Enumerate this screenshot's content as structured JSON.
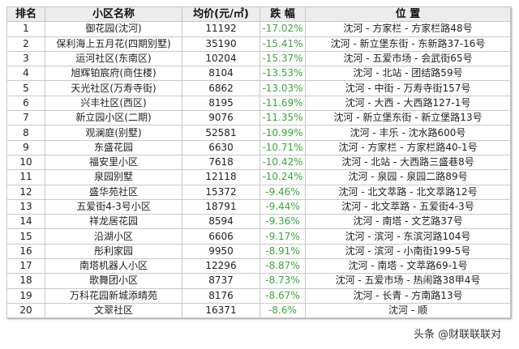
{
  "headers": [
    "排名",
    "小区名称",
    "均价(元/㎡)",
    "跌 幅",
    "位 置"
  ],
  "rows": [
    [
      "1",
      "御花园(沈河)",
      "11192",
      "-17.02%",
      "沈河 - 方家栏 - 方家栏路48号"
    ],
    [
      "2",
      "保利海上五月花(四期别墅)",
      "35190",
      "-15.41%",
      "沈河 - 新立堡东街 - 东新路37-16号"
    ],
    [
      "3",
      "运河社区(东南区)",
      "10204",
      "-15.37%",
      "沈河 - 五爱市场 - 会武街65号"
    ],
    [
      "4",
      "旭辉铂宸府(商住楼)",
      "8104",
      "-13.53%",
      "沈河 - 北站 - 团结路59号"
    ],
    [
      "5",
      "天光社区(万寿寺街)",
      "6862",
      "-13.03%",
      "沈河 - 中街 - 万寿寺街157号"
    ],
    [
      "6",
      "兴丰社区(西区)",
      "8195",
      "-11.69%",
      "沈河 - 大西 - 大西路127-1号"
    ],
    [
      "7",
      "新立园小区(二期)",
      "9076",
      "-11.35%",
      "沈河 - 新立堡东街 - 新立堡路13号"
    ],
    [
      "8",
      "观澜庭(别墅)",
      "52581",
      "-10.99%",
      "沈河 - 丰乐 - 沈水路600号"
    ],
    [
      "9",
      "东盛花园",
      "6630",
      "-10.71%",
      "沈河 - 方家栏 - 方家栏路40-1号"
    ],
    [
      "10",
      "福安里小区",
      "7618",
      "-10.42%",
      "沈河 - 北站 - 大西路三盛巷8号"
    ],
    [
      "11",
      "泉园别墅",
      "12118",
      "-10.24%",
      "沈河 - 泉园 - 泉园二路89号"
    ],
    [
      "12",
      "盛华苑社区",
      "15372",
      "-9.46%",
      "沈河 - 北文萃路 - 北文萃路12号"
    ],
    [
      "13",
      "五爱街4-3号小区",
      "18791",
      "-9.44%",
      "沈河 - 北文萃路 - 五爱街4-3号"
    ],
    [
      "14",
      "祥龙居花园",
      "8594",
      "-9.36%",
      "沈河 - 南塔 - 文艺路37号"
    ],
    [
      "15",
      "沿湖小区",
      "6606",
      "-9.17%",
      "沈河 - 滨河 - 东滨河路104号"
    ],
    [
      "16",
      "彤利家园",
      "9950",
      "-8.91%",
      "沈河 - 滨河 - 小南街199-5号"
    ],
    [
      "17",
      "南塔机器人小区",
      "12296",
      "-8.87%",
      "沈河 - 南塔 - 文萃路69-1号"
    ],
    [
      "18",
      "歌舞团小区",
      "8737",
      "-8.73%",
      "沈河 - 五爱市场 - 热闹路38甲4号"
    ],
    [
      "19",
      "万科花园新城添晴苑",
      "8176",
      "-8.67%",
      "沈河 - 长青 - 方南路13号"
    ],
    [
      "20",
      "文翠社区",
      "16371",
      "-8.6%",
      "沈河 - 顺"
    ]
  ],
  "watermark": "头条 @财联联联对",
  "colors": {
    "decline": "#3aa63a",
    "header_bg": "#ececec"
  }
}
